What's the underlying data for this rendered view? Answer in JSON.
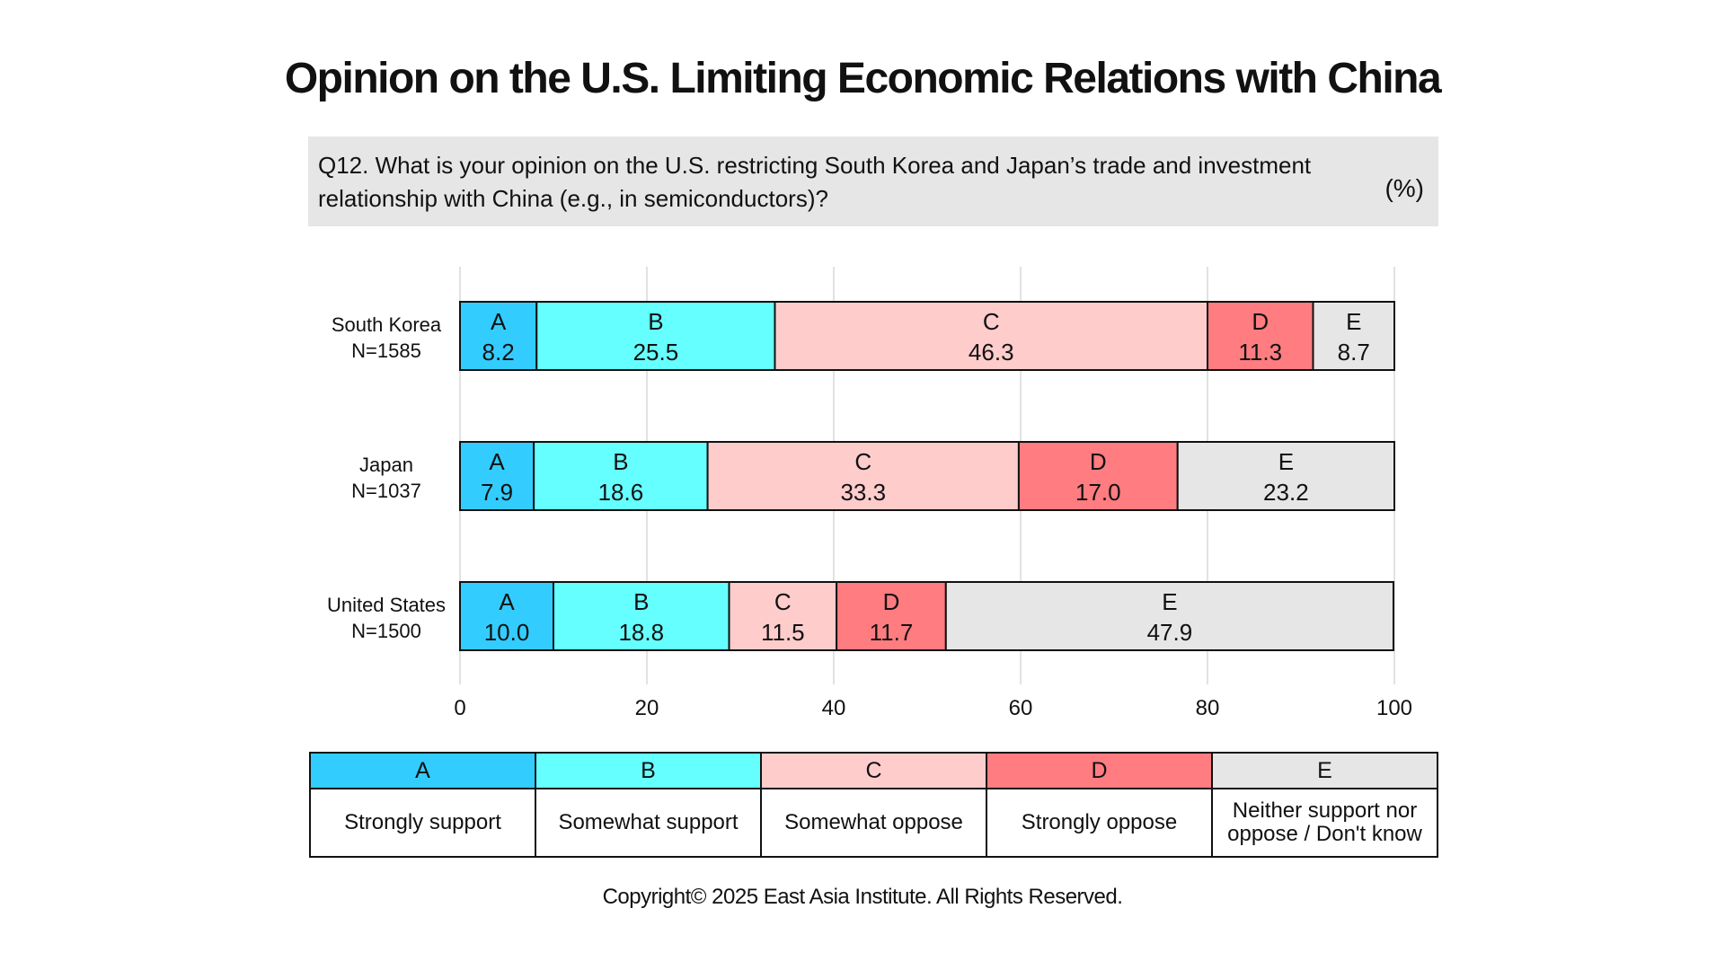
{
  "title": "Opinion on the U.S. Limiting Economic Relations with China",
  "question": "Q12. What is your opinion on the U.S. restricting South Korea and Japan’s trade and investment relationship with China (e.g., in semiconductors)?",
  "unit": "(%)",
  "copyright": "Copyright© 2025 East Asia Institute. All Rights Reserved.",
  "colors": {
    "A": "#33ccff",
    "B": "#66ffff",
    "C": "#ffcccc",
    "D": "#ff7c80",
    "E": "#e6e6e6"
  },
  "legend": [
    {
      "code": "A",
      "label": "Strongly support"
    },
    {
      "code": "B",
      "label": "Somewhat support"
    },
    {
      "code": "C",
      "label": "Somewhat oppose"
    },
    {
      "code": "D",
      "label": "Strongly oppose"
    },
    {
      "code": "E",
      "label": "Neither support nor oppose / Don't know"
    }
  ],
  "chart_data": {
    "type": "bar",
    "orientation": "horizontal",
    "stacked": true,
    "categories": [
      {
        "name": "South Korea",
        "n": "N=1585"
      },
      {
        "name": "Japan",
        "n": "N=1037"
      },
      {
        "name": "United States",
        "n": "N=1500"
      }
    ],
    "series": [
      {
        "name": "A",
        "values": [
          8.2,
          7.9,
          10.0
        ]
      },
      {
        "name": "B",
        "values": [
          25.5,
          18.6,
          18.8
        ]
      },
      {
        "name": "C",
        "values": [
          46.3,
          33.3,
          11.5
        ]
      },
      {
        "name": "D",
        "values": [
          11.3,
          17.0,
          11.7
        ]
      },
      {
        "name": "E",
        "values": [
          8.7,
          23.2,
          47.9
        ]
      }
    ],
    "xlim": [
      0,
      100
    ],
    "xticks": [
      0,
      20,
      40,
      60,
      80,
      100
    ],
    "grid": true
  }
}
